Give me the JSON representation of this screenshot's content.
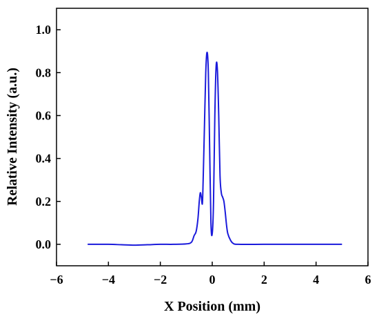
{
  "chart_data": {
    "type": "line",
    "title": "",
    "xlabel": "X Position (mm)",
    "ylabel": "Relative Intensity (a.u.)",
    "xlim": [
      -6,
      6
    ],
    "ylim": [
      -0.1,
      1.1
    ],
    "xticks": [
      -6,
      -4,
      -2,
      0,
      2,
      4,
      6
    ],
    "xtick_labels": [
      "−6",
      "−4",
      "−2",
      "0",
      "2",
      "4",
      "6"
    ],
    "yticks": [
      0.0,
      0.2,
      0.4,
      0.6,
      0.8,
      1.0
    ],
    "ytick_labels": [
      "0.0",
      "0.2",
      "0.4",
      "0.6",
      "0.8",
      "1.0"
    ],
    "grid": false,
    "legend": "none",
    "series": [
      {
        "color": "#1a1adb",
        "x": [
          -4.8,
          -4.0,
          -3.5,
          -3.0,
          -2.5,
          -2.0,
          -1.5,
          -1.0,
          -0.8,
          -0.7,
          -0.62,
          -0.55,
          -0.5,
          -0.46,
          -0.42,
          -0.38,
          -0.35,
          -0.3,
          -0.25,
          -0.2,
          -0.15,
          -0.1,
          -0.05,
          0.0,
          0.05,
          0.1,
          0.15,
          0.2,
          0.25,
          0.3,
          0.35,
          0.4,
          0.45,
          0.5,
          0.55,
          0.6,
          0.7,
          0.8,
          1.0,
          2.0,
          3.0,
          4.0,
          5.0
        ],
        "y": [
          0.0,
          0.0,
          -0.002,
          -0.004,
          -0.002,
          0.0,
          0.0,
          0.002,
          0.01,
          0.04,
          0.06,
          0.12,
          0.2,
          0.24,
          0.22,
          0.19,
          0.3,
          0.55,
          0.8,
          0.895,
          0.8,
          0.45,
          0.1,
          0.05,
          0.2,
          0.6,
          0.83,
          0.81,
          0.6,
          0.32,
          0.24,
          0.22,
          0.2,
          0.15,
          0.09,
          0.05,
          0.02,
          0.005,
          0.0,
          0.0,
          0.0,
          0.0,
          0.0
        ]
      }
    ]
  }
}
